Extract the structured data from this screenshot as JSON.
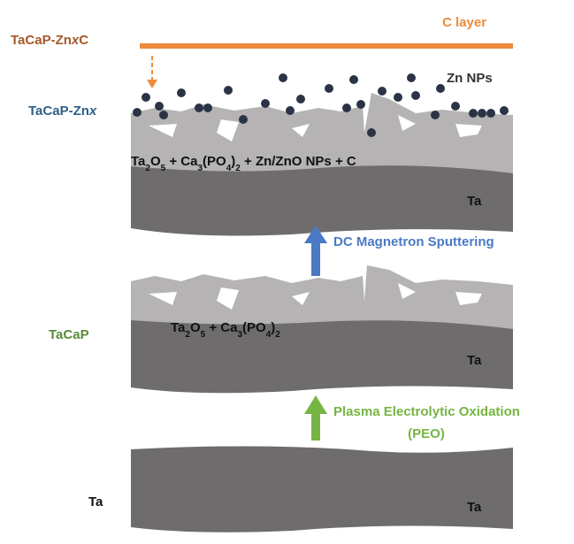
{
  "top_stage": {
    "label_parts": [
      "TaCaP-Zn",
      "x",
      "C"
    ],
    "intermediate_label_parts": [
      "TaCaP-Zn",
      "x"
    ],
    "c_layer_label": "C layer",
    "nps_label": "Zn NPs",
    "composition_parts": [
      "Ta",
      "2",
      "O",
      "5",
      " + Ca",
      "3",
      "(PO",
      "4",
      ")",
      "2",
      " + Zn/ZnO NPs + C"
    ],
    "substrate_label": "Ta"
  },
  "sputtering_step": {
    "label": "DC Magnetron Sputtering"
  },
  "middle_stage": {
    "label": "TaCaP",
    "composition_parts": [
      "Ta",
      "2",
      "O",
      "5",
      " + Ca",
      "3",
      "(PO",
      "4",
      ")",
      "2"
    ],
    "substrate_label": "Ta"
  },
  "peo_step": {
    "lines": [
      "Plasma Electrolytic Oxidation",
      "(PEO)"
    ]
  },
  "bottom_stage": {
    "label": "Ta",
    "substrate_label": "Ta"
  }
}
